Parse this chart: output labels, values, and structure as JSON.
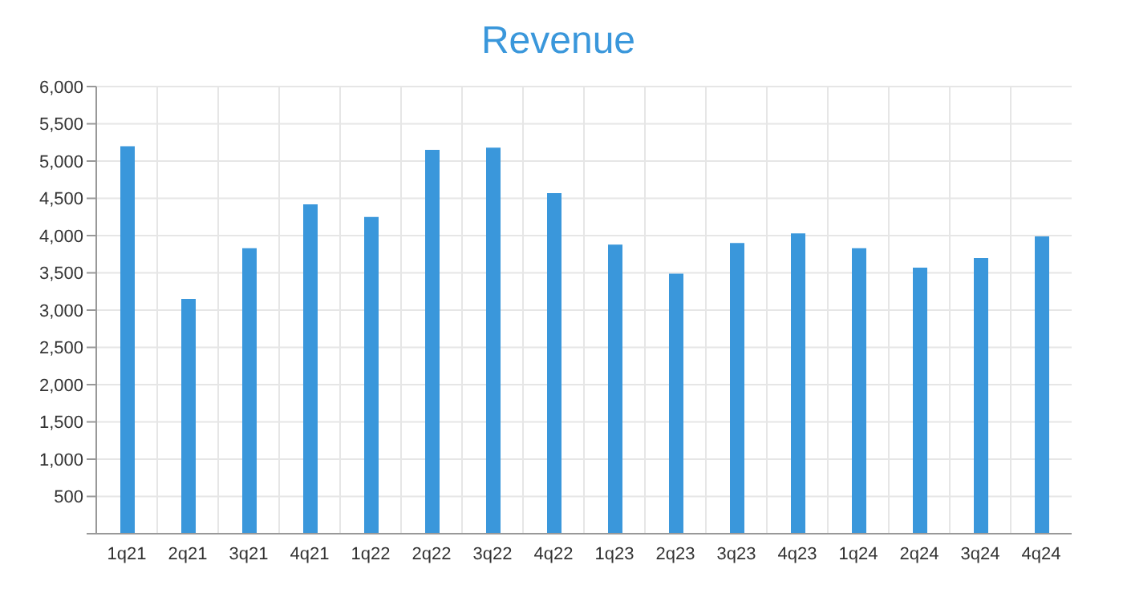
{
  "chart_data": {
    "type": "bar",
    "title": "Revenue",
    "categories": [
      "1q21",
      "2q21",
      "3q21",
      "4q21",
      "1q22",
      "2q22",
      "3q22",
      "4q22",
      "1q23",
      "2q23",
      "3q23",
      "4q23",
      "1q24",
      "2q24",
      "3q24",
      "4q24"
    ],
    "values": [
      5200,
      3150,
      3830,
      4420,
      4250,
      5150,
      5180,
      4570,
      3880,
      3490,
      3900,
      4030,
      3830,
      3570,
      3700,
      3990
    ],
    "color": "#3a97db",
    "ylim": [
      0,
      6000
    ],
    "yticks": [
      {
        "value": 0,
        "label": null
      },
      500,
      {
        "value": 1000,
        "label": "1,000"
      },
      {
        "value": 1500,
        "label": "1,500"
      },
      {
        "value": 2000,
        "label": "2,000"
      },
      {
        "value": 2500,
        "label": "2,500"
      },
      {
        "value": 3000,
        "label": "3,000"
      },
      {
        "value": 3500,
        "label": "3,500"
      },
      {
        "value": 4000,
        "label": "4,000"
      },
      {
        "value": 4500,
        "label": "4,500"
      },
      {
        "value": 5000,
        "label": "5,000"
      },
      {
        "value": 5500,
        "label": "5,500"
      },
      {
        "value": 6000,
        "label": "6,000"
      }
    ],
    "grid": true
  }
}
